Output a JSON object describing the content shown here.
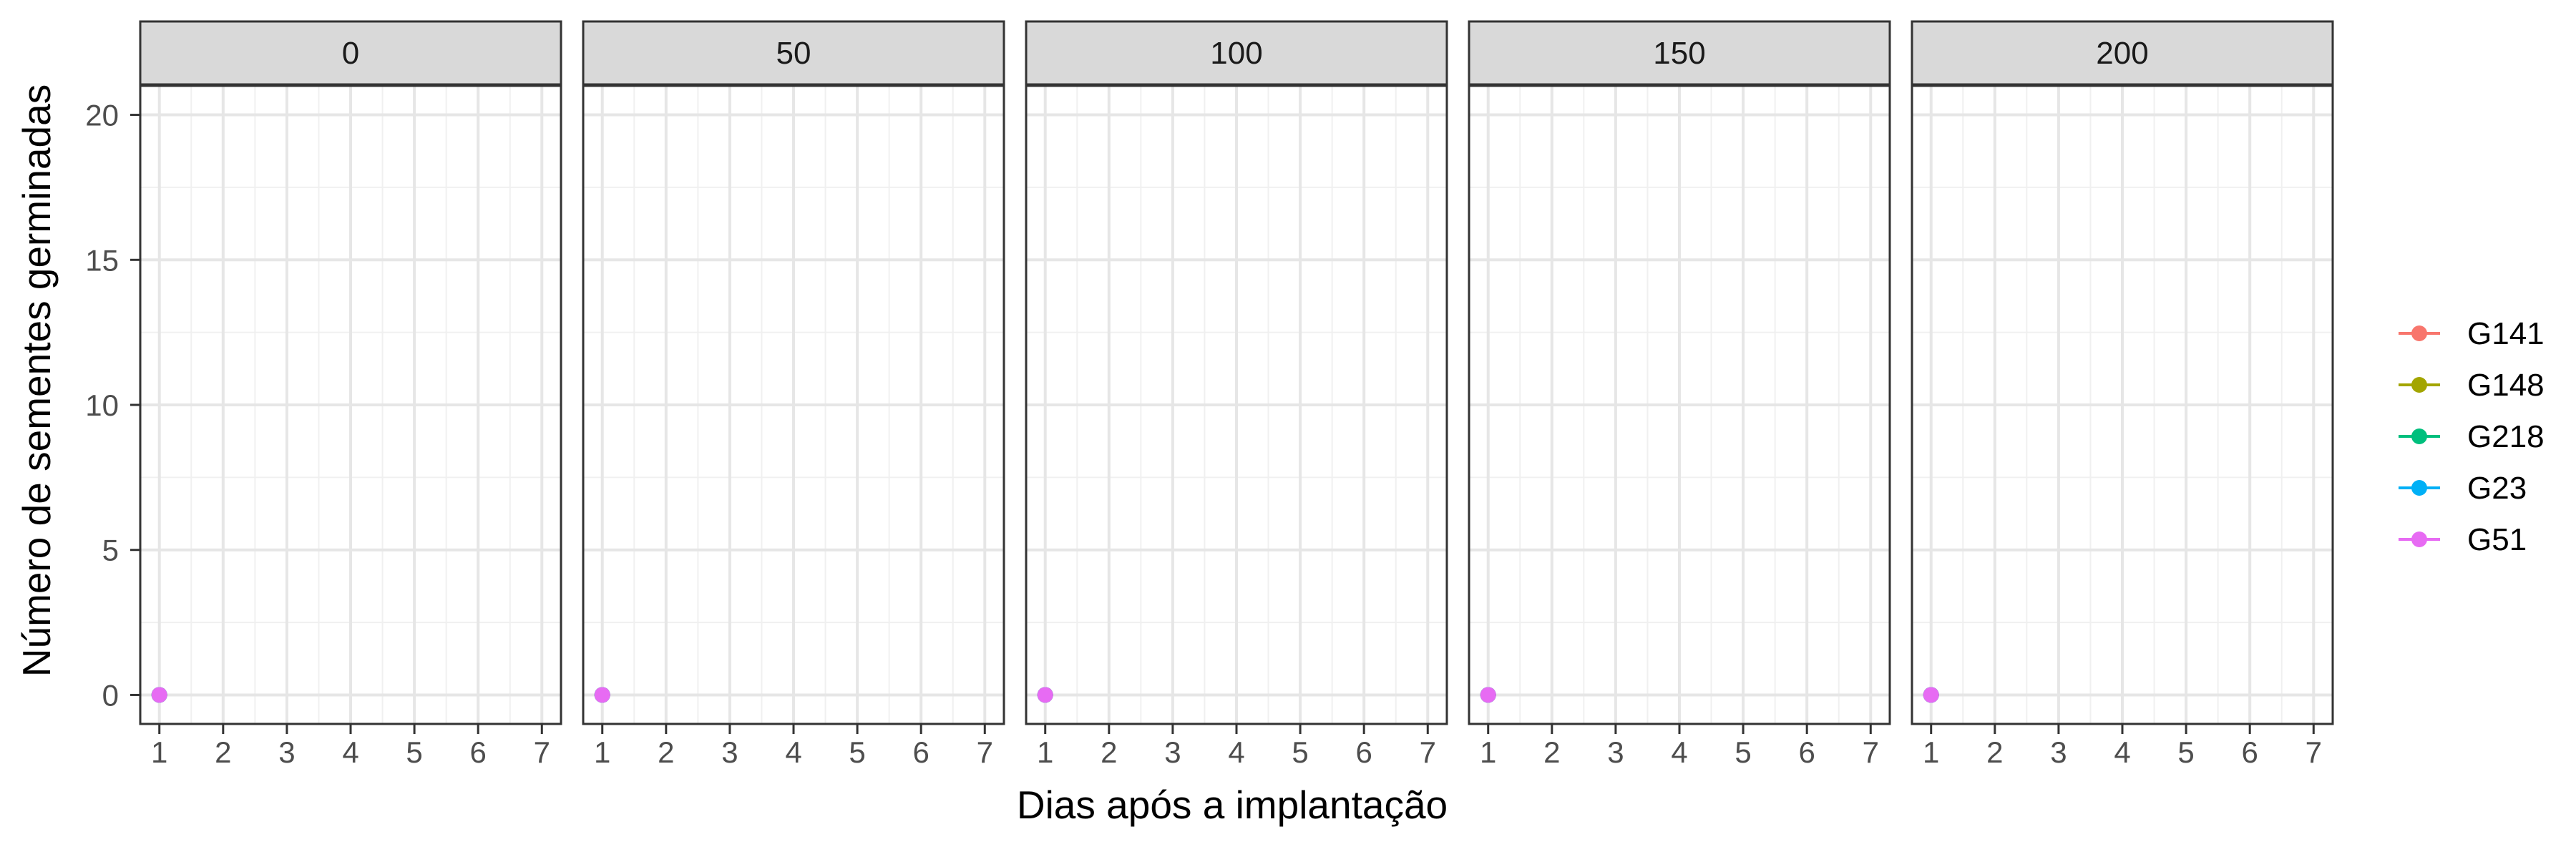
{
  "chart_data": {
    "type": "line",
    "xlabel": "Dias após a implantação",
    "ylabel": "Número de sementes germinadas",
    "xlim": [
      0.7,
      7.3
    ],
    "ylim": [
      -1,
      21
    ],
    "x_ticks": [
      1,
      2,
      3,
      4,
      5,
      6,
      7
    ],
    "y_ticks": [
      0,
      5,
      10,
      15,
      20
    ],
    "grid": true,
    "legend_position": "right",
    "panels": [
      {
        "label": "0",
        "series": [
          {
            "name": "G141",
            "color": "#F8766D",
            "x": [
              1
            ],
            "y": [
              0
            ]
          },
          {
            "name": "G148",
            "color": "#A3A500",
            "x": [
              1
            ],
            "y": [
              0
            ]
          },
          {
            "name": "G218",
            "color": "#00BF7D",
            "x": [
              1
            ],
            "y": [
              0
            ]
          },
          {
            "name": "G23",
            "color": "#00B0F6",
            "x": [
              1
            ],
            "y": [
              0
            ]
          },
          {
            "name": "G51",
            "color": "#E76BF3",
            "x": [
              1
            ],
            "y": [
              0
            ]
          }
        ]
      },
      {
        "label": "50",
        "series": [
          {
            "name": "G141",
            "color": "#F8766D",
            "x": [
              1
            ],
            "y": [
              0
            ]
          },
          {
            "name": "G148",
            "color": "#A3A500",
            "x": [
              1
            ],
            "y": [
              0
            ]
          },
          {
            "name": "G218",
            "color": "#00BF7D",
            "x": [
              1
            ],
            "y": [
              0
            ]
          },
          {
            "name": "G23",
            "color": "#00B0F6",
            "x": [
              1
            ],
            "y": [
              0
            ]
          },
          {
            "name": "G51",
            "color": "#E76BF3",
            "x": [
              1
            ],
            "y": [
              0
            ]
          }
        ]
      },
      {
        "label": "100",
        "series": [
          {
            "name": "G141",
            "color": "#F8766D",
            "x": [
              1
            ],
            "y": [
              0
            ]
          },
          {
            "name": "G148",
            "color": "#A3A500",
            "x": [
              1
            ],
            "y": [
              0
            ]
          },
          {
            "name": "G218",
            "color": "#00BF7D",
            "x": [
              1
            ],
            "y": [
              0
            ]
          },
          {
            "name": "G23",
            "color": "#00B0F6",
            "x": [
              1
            ],
            "y": [
              0
            ]
          },
          {
            "name": "G51",
            "color": "#E76BF3",
            "x": [
              1
            ],
            "y": [
              0
            ]
          }
        ]
      },
      {
        "label": "150",
        "series": [
          {
            "name": "G141",
            "color": "#F8766D",
            "x": [
              1
            ],
            "y": [
              0
            ]
          },
          {
            "name": "G148",
            "color": "#A3A500",
            "x": [
              1
            ],
            "y": [
              0
            ]
          },
          {
            "name": "G218",
            "color": "#00BF7D",
            "x": [
              1
            ],
            "y": [
              0
            ]
          },
          {
            "name": "G23",
            "color": "#00B0F6",
            "x": [
              1
            ],
            "y": [
              0
            ]
          },
          {
            "name": "G51",
            "color": "#E76BF3",
            "x": [
              1
            ],
            "y": [
              0
            ]
          }
        ]
      },
      {
        "label": "200",
        "series": [
          {
            "name": "G141",
            "color": "#F8766D",
            "x": [
              1
            ],
            "y": [
              0
            ]
          },
          {
            "name": "G148",
            "color": "#A3A500",
            "x": [
              1
            ],
            "y": [
              0
            ]
          },
          {
            "name": "G218",
            "color": "#00BF7D",
            "x": [
              1
            ],
            "y": [
              0
            ]
          },
          {
            "name": "G23",
            "color": "#00B0F6",
            "x": [
              1
            ],
            "y": [
              0
            ]
          },
          {
            "name": "G51",
            "color": "#E76BF3",
            "x": [
              1
            ],
            "y": [
              0
            ]
          }
        ]
      }
    ],
    "legend": [
      {
        "name": "G141",
        "color": "#F8766D"
      },
      {
        "name": "G148",
        "color": "#A3A500"
      },
      {
        "name": "G218",
        "color": "#00BF7D"
      },
      {
        "name": "G23",
        "color": "#00B0F6"
      },
      {
        "name": "G51",
        "color": "#E76BF3"
      }
    ]
  }
}
